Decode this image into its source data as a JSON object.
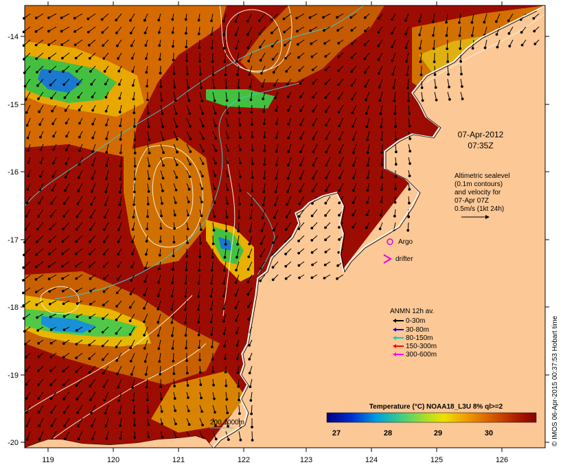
{
  "map": {
    "lon_ticks": [
      "119",
      "120",
      "121",
      "122",
      "123",
      "124",
      "125",
      "126"
    ],
    "lat_ticks": [
      "-14",
      "-15",
      "-16",
      "-17",
      "-18",
      "-19",
      "-20"
    ],
    "colors": {
      "land": "#fcc896",
      "warm_sst": "#9c0c02",
      "mid_sst": "#d46a00",
      "cool_sst": "#e8a800",
      "cold_sst": "#44c040",
      "coldest_sst": "#1a78d0",
      "contour": "#f5f0d0",
      "isobath": "#40c8c8",
      "vector": "#000000"
    }
  },
  "timestamp": {
    "date": "07-Apr-2012",
    "time": "07:35Z"
  },
  "altimetry": {
    "line1": "Altimetric sealevel",
    "line2": "(0.1m contours)",
    "line3": "and velocity for",
    "line4": "07-Apr 07Z",
    "line5": "0.5m/s (1kt 24h)"
  },
  "markers": {
    "argo": "Argo",
    "drifter": "drifter"
  },
  "anmn": {
    "title": "ANMN 12h av.",
    "items": [
      {
        "label": "0-30m",
        "color": "#000000"
      },
      {
        "label": "30-80m",
        "color": "#0000ff"
      },
      {
        "label": "80-150m",
        "color": "#00d0d0"
      },
      {
        "label": "150-300m",
        "color": "#ff0000"
      },
      {
        "label": "300-600m",
        "color": "#ff00ff"
      }
    ]
  },
  "isobath_legend": "200  1000m",
  "colorbar": {
    "title": "Temperature (°C) NOAA18_L3U 8% ql>=2",
    "ticks": [
      "27",
      "28",
      "29",
      "30"
    ]
  },
  "credit": "© IMOS 06-Apr-2015 00:37:53 Hobart time"
}
